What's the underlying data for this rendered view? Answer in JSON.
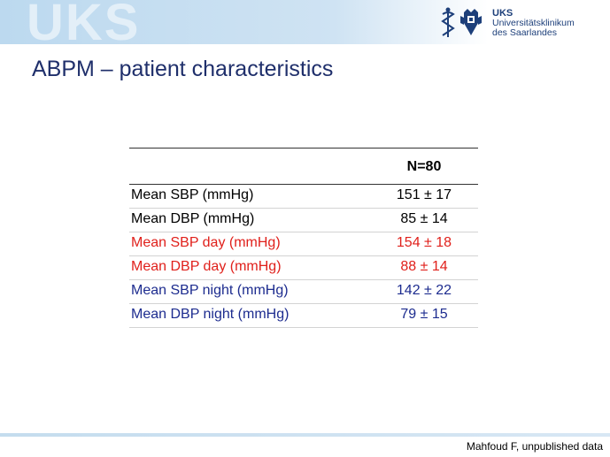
{
  "header": {
    "watermark": "UKS",
    "logo": {
      "line1": "UKS",
      "line2": "Universitätsklinikum",
      "line3": "des Saarlandes"
    }
  },
  "slide": {
    "title": "ABPM – patient characteristics",
    "footnote": "Mahfoud F, unpublished data"
  },
  "table": {
    "column_header": "N=80",
    "rows": [
      {
        "label": "Mean SBP (mmHg)",
        "value": "151 ± 17",
        "color": "#000000"
      },
      {
        "label": "Mean DBP (mmHg)",
        "value": "85 ± 14",
        "color": "#000000"
      },
      {
        "label": "Mean SBP day (mmHg)",
        "value": "154 ± 18",
        "color": "#e0201b"
      },
      {
        "label": "Mean DBP day (mmHg)",
        "value": "88 ± 14",
        "color": "#e0201b"
      },
      {
        "label": "Mean SBP night (mmHg)",
        "value": "142 ± 22",
        "color": "#1d2c8f"
      },
      {
        "label": "Mean DBP night (mmHg)",
        "value": "79 ± 15",
        "color": "#1d2c8f"
      }
    ]
  },
  "colors": {
    "title": "#1f2f6b",
    "brand": "#1d3f7a",
    "header_band": "#bcd9ef"
  }
}
